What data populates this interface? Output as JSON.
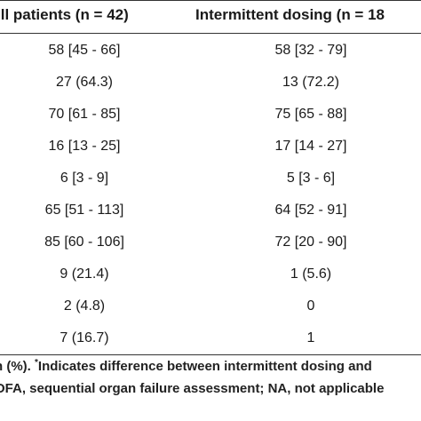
{
  "table": {
    "headers": {
      "all_patients": ".ll patients  (n = 42)",
      "intermittent": "Intermittent dosing  (n = 18"
    },
    "rows": [
      {
        "all": "58 [45 - 66]",
        "intermittent": "58 [32 - 79]"
      },
      {
        "all": "27 (64.3)",
        "intermittent": "13 (72.2)"
      },
      {
        "all": "70 [61 - 85]",
        "intermittent": "75 [65 - 88]"
      },
      {
        "all": "16 [13 - 25]",
        "intermittent": "17 [14 - 27]"
      },
      {
        "all": "6 [3 - 9]",
        "intermittent": "5 [3 - 6]"
      },
      {
        "all": "65 [51 - 113]",
        "intermittent": "64 [52 - 91]"
      },
      {
        "all": "85 [60 - 106]",
        "intermittent": "72 [20 - 90]"
      },
      {
        "all": "9 (21.4)",
        "intermittent": "1 (5.6)"
      },
      {
        "all": "2 (4.8)",
        "intermittent": "0"
      },
      {
        "all": "7 (16.7)",
        "intermittent": "1"
      }
    ]
  },
  "footnotes": {
    "line1_before": "n (%). ",
    "line1_marker": "*",
    "line1_after": "Indicates difference between intermittent dosing and",
    "line2": "OFA, sequential organ failure assessment; NA, not applicable"
  }
}
